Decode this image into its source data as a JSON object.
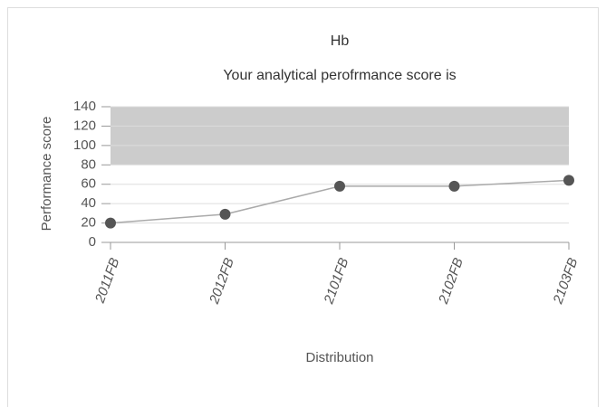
{
  "chart_data": {
    "type": "line",
    "title": "Hb",
    "subtitle": "Your analytical perofrmance score is",
    "y_label": "Performance score",
    "x_label": "Distribution",
    "categories": [
      "2011FB",
      "2012FB",
      "2101FB",
      "2102FB",
      "2103FB"
    ],
    "series": [
      {
        "name": "Performance score",
        "color": "#aaaaaa",
        "marker_color": "#555555",
        "values": [
          20,
          29,
          58,
          58,
          64
        ]
      }
    ],
    "band": [
      80,
      140
    ],
    "band_color": "#cccccc",
    "ylim": [
      0,
      140
    ],
    "yticks": [
      0,
      20,
      40,
      60,
      80,
      100,
      120,
      140
    ],
    "grid": true
  }
}
